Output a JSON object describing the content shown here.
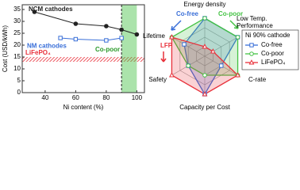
{
  "chart_data": [
    {
      "type": "line",
      "xlabel": "Ni content (%)",
      "ylabel": "Cost (USD/kWh)",
      "xlim": [
        25,
        105
      ],
      "ylim": [
        0,
        37
      ],
      "xticks": [
        40,
        60,
        80,
        100
      ],
      "yticks": [
        0,
        5,
        10,
        15,
        20,
        25,
        30,
        35
      ],
      "series": [
        {
          "name": "NCM cathodes",
          "color": "#222222",
          "marker": "circle",
          "x": [
            33,
            60,
            80,
            90,
            100
          ],
          "values": [
            34,
            29,
            28,
            26.5,
            24.5
          ]
        },
        {
          "name": "NM cathodes",
          "color": "#3a6fd8",
          "marker": "square",
          "x": [
            50,
            60,
            80,
            90
          ],
          "values": [
            23,
            22.5,
            22,
            23
          ]
        }
      ],
      "bands": [
        {
          "name": "LiFePO₄",
          "axis": "y",
          "range": [
            13,
            15
          ],
          "color": "#e8303a"
        },
        {
          "name": "Co-poor",
          "axis": "x",
          "range": [
            90,
            100
          ],
          "color": "#44c244"
        }
      ]
    },
    {
      "type": "radar",
      "axes": [
        "Energy density",
        "Low Temp. Performance",
        "C-rate",
        "Capacity per Cost",
        "Safety",
        "Lifetime"
      ],
      "rlim": [
        0,
        4
      ],
      "rticks": [
        1,
        2,
        3,
        4
      ],
      "legend_title": "Ni 90% cathode",
      "series": [
        {
          "name": "Co-free",
          "color": "#3a6fd8",
          "marker": "square",
          "values": [
            4,
            4,
            2,
            4,
            2,
            2.5
          ]
        },
        {
          "name": "Co-poor",
          "color": "#44c244",
          "marker": "circle",
          "values": [
            4,
            4,
            4,
            2,
            2,
            4
          ]
        },
        {
          "name": "LiFePO₄",
          "color": "#e8303a",
          "marker": "triangle",
          "values": [
            1,
            1,
            4,
            4,
            4,
            4
          ]
        }
      ],
      "annotations": [
        {
          "text": "Co-free",
          "color": "#3a6fd8"
        },
        {
          "text": "Co-poor",
          "color": "#44c244"
        },
        {
          "text": "LFP",
          "color": "#e8303a"
        }
      ]
    }
  ]
}
